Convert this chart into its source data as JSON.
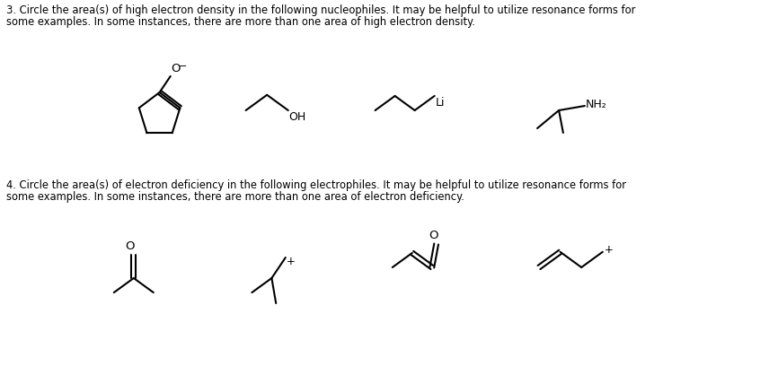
{
  "background": "#ffffff",
  "lc": "#000000",
  "lw": 1.5,
  "fs_text": 8.3,
  "fs_chem": 9.0,
  "q3_line1": "3. Circle the area(s) of high electron density in the following nucleophiles. It may be helpful to utilize resonance forms for",
  "q3_line2": "some examples. In some instances, there are more than one area of high electron density.",
  "q4_line1": "4. Circle the area(s) of electron deficiency in the following electrophiles. It may be helpful to utilize resonance forms for",
  "q4_line2": "some examples. In some instances, there are more than one area of electron deficiency."
}
